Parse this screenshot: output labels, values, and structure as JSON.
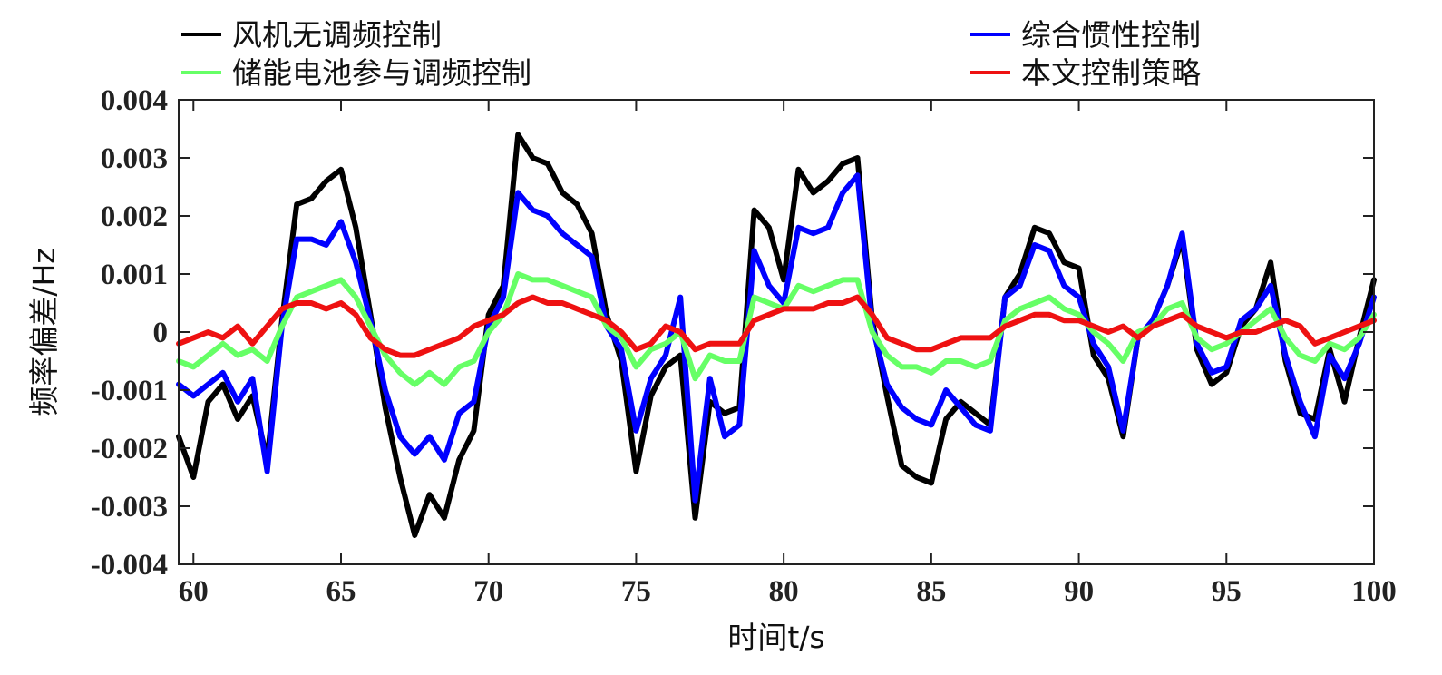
{
  "chart_data": {
    "type": "line",
    "title": "",
    "xlabel": "时间t/s",
    "ylabel": "频率偏差/Hz",
    "xlim": [
      59.5,
      100
    ],
    "ylim": [
      -0.004,
      0.004
    ],
    "xticks": [
      60,
      65,
      70,
      75,
      80,
      85,
      90,
      95,
      100
    ],
    "xtick_labels": [
      "60",
      "65",
      "70",
      "75",
      "80",
      "85",
      "90",
      "95",
      "100"
    ],
    "yticks": [
      0.004,
      0.003,
      0.002,
      0.001,
      0,
      -0.001,
      -0.002,
      -0.003,
      -0.004
    ],
    "ytick_labels": [
      "0.004",
      "0.003",
      "0.002",
      "0.001",
      "0",
      "-0.001",
      "-0.002",
      "-0.003",
      "-0.004"
    ],
    "grid": false,
    "legend_position": "top",
    "series": [
      {
        "name": "风机无调频控制",
        "color": "#000000",
        "x": [
          59.5,
          60,
          60.5,
          61,
          61.5,
          62,
          62.5,
          63,
          63.5,
          64,
          64.5,
          65,
          65.5,
          66,
          66.5,
          67,
          67.5,
          68,
          68.5,
          69,
          69.5,
          70,
          70.5,
          71,
          71.5,
          72,
          72.5,
          73,
          73.5,
          74,
          74.5,
          75,
          75.5,
          76,
          76.5,
          77,
          77.5,
          78,
          78.5,
          79,
          79.5,
          80,
          80.5,
          81,
          81.5,
          82,
          82.5,
          83,
          83.5,
          84,
          84.5,
          85,
          85.5,
          86,
          86.5,
          87,
          87.5,
          88,
          88.5,
          89,
          89.5,
          90,
          90.5,
          91,
          91.5,
          92,
          92.5,
          93,
          93.5,
          94,
          94.5,
          95,
          95.5,
          96,
          96.5,
          97,
          97.5,
          98,
          98.5,
          99,
          99.5,
          100
        ],
        "y": [
          -0.0018,
          -0.0025,
          -0.0012,
          -0.0009,
          -0.0015,
          -0.0011,
          -0.0022,
          0.0002,
          0.0022,
          0.0023,
          0.0026,
          0.0028,
          0.0018,
          0.0003,
          -0.0013,
          -0.0025,
          -0.0035,
          -0.0028,
          -0.0032,
          -0.0022,
          -0.0017,
          0.0003,
          0.0008,
          0.0034,
          0.003,
          0.0029,
          0.0024,
          0.0022,
          0.0017,
          0.0003,
          -0.0005,
          -0.0024,
          -0.0011,
          -0.0006,
          -0.0004,
          -0.0032,
          -0.0012,
          -0.0014,
          -0.0013,
          0.0021,
          0.0018,
          0.0009,
          0.0028,
          0.0024,
          0.0026,
          0.0029,
          0.003,
          0.0002,
          -0.0011,
          -0.0023,
          -0.0025,
          -0.0026,
          -0.0015,
          -0.0012,
          -0.0014,
          -0.0016,
          0.0006,
          0.001,
          0.0018,
          0.0017,
          0.0012,
          0.0011,
          -0.0004,
          -0.0008,
          -0.0018,
          -0.0001,
          0.0002,
          0.0008,
          0.0016,
          -0.0003,
          -0.0009,
          -0.0007,
          0.0001,
          0.0004,
          0.0012,
          -0.0005,
          -0.0014,
          -0.0015,
          -0.0003,
          -0.0012,
          -0.0001,
          0.0009
        ]
      },
      {
        "name": "综合惯性控制",
        "color": "#0000ff",
        "x": [
          59.5,
          60,
          60.5,
          61,
          61.5,
          62,
          62.5,
          63,
          63.5,
          64,
          64.5,
          65,
          65.5,
          66,
          66.5,
          67,
          67.5,
          68,
          68.5,
          69,
          69.5,
          70,
          70.5,
          71,
          71.5,
          72,
          72.5,
          73,
          73.5,
          74,
          74.5,
          75,
          75.5,
          76,
          76.5,
          77,
          77.5,
          78,
          78.5,
          79,
          79.5,
          80,
          80.5,
          81,
          81.5,
          82,
          82.5,
          83,
          83.5,
          84,
          84.5,
          85,
          85.5,
          86,
          86.5,
          87,
          87.5,
          88,
          88.5,
          89,
          89.5,
          90,
          90.5,
          91,
          91.5,
          92,
          92.5,
          93,
          93.5,
          94,
          94.5,
          95,
          95.5,
          96,
          96.5,
          97,
          97.5,
          98,
          98.5,
          99,
          99.5,
          100
        ],
        "y": [
          -0.0009,
          -0.0011,
          -0.0009,
          -0.0007,
          -0.0012,
          -0.0008,
          -0.0024,
          0.0001,
          0.0016,
          0.0016,
          0.0015,
          0.0019,
          0.0012,
          0.0002,
          -0.001,
          -0.0018,
          -0.0021,
          -0.0018,
          -0.0022,
          -0.0014,
          -0.0012,
          0.0001,
          0.0006,
          0.0024,
          0.0021,
          0.002,
          0.0017,
          0.0015,
          0.0013,
          0.0001,
          -0.0003,
          -0.0017,
          -0.0008,
          -0.0004,
          0.0006,
          -0.0029,
          -0.0008,
          -0.0018,
          -0.0016,
          0.0014,
          0.0008,
          0.0005,
          0.0018,
          0.0017,
          0.0018,
          0.0024,
          0.0027,
          0.0001,
          -0.0009,
          -0.0013,
          -0.0015,
          -0.0016,
          -0.001,
          -0.0013,
          -0.0016,
          -0.0017,
          0.0006,
          0.0008,
          0.0015,
          0.0014,
          0.0008,
          0.0006,
          -0.0002,
          -0.0006,
          -0.0017,
          -0.0001,
          0.0002,
          0.0008,
          0.0017,
          -0.0002,
          -0.0007,
          -0.0006,
          0.0002,
          0.0004,
          0.0008,
          -0.0004,
          -0.0012,
          -0.0018,
          -0.0004,
          -0.0008,
          -0.0002,
          0.0006
        ]
      },
      {
        "name": "储能电池参与调频控制",
        "color": "#66ff66",
        "x": [
          59.5,
          60,
          60.5,
          61,
          61.5,
          62,
          62.5,
          63,
          63.5,
          64,
          64.5,
          65,
          65.5,
          66,
          66.5,
          67,
          67.5,
          68,
          68.5,
          69,
          69.5,
          70,
          70.5,
          71,
          71.5,
          72,
          72.5,
          73,
          73.5,
          74,
          74.5,
          75,
          75.5,
          76,
          76.5,
          77,
          77.5,
          78,
          78.5,
          79,
          79.5,
          80,
          80.5,
          81,
          81.5,
          82,
          82.5,
          83,
          83.5,
          84,
          84.5,
          85,
          85.5,
          86,
          86.5,
          87,
          87.5,
          88,
          88.5,
          89,
          89.5,
          90,
          90.5,
          91,
          91.5,
          92,
          92.5,
          93,
          93.5,
          94,
          94.5,
          95,
          95.5,
          96,
          96.5,
          97,
          97.5,
          98,
          98.5,
          99,
          99.5,
          100
        ],
        "y": [
          -0.0005,
          -0.0006,
          -0.0004,
          -0.0002,
          -0.0004,
          -0.0003,
          -0.0005,
          0.0001,
          0.0006,
          0.0007,
          0.0008,
          0.0009,
          0.0006,
          0.0001,
          -0.0004,
          -0.0007,
          -0.0009,
          -0.0007,
          -0.0009,
          -0.0006,
          -0.0005,
          0,
          0.0003,
          0.001,
          0.0009,
          0.0009,
          0.0008,
          0.0007,
          0.0006,
          0.0001,
          -0.0001,
          -0.0006,
          -0.0003,
          -0.0002,
          0,
          -0.0008,
          -0.0004,
          -0.0005,
          -0.0005,
          0.0006,
          0.0005,
          0.0004,
          0.0008,
          0.0007,
          0.0008,
          0.0009,
          0.0009,
          0,
          -0.0004,
          -0.0006,
          -0.0006,
          -0.0007,
          -0.0005,
          -0.0005,
          -0.0006,
          -0.0005,
          0.0002,
          0.0004,
          0.0005,
          0.0006,
          0.0004,
          0.0003,
          0,
          -0.0002,
          -0.0005,
          0,
          0.0001,
          0.0004,
          0.0005,
          -0.0001,
          -0.0003,
          -0.0002,
          0,
          0.0002,
          0.0004,
          -0.0001,
          -0.0004,
          -0.0005,
          -0.0002,
          -0.0003,
          -0.0001,
          0.0003
        ]
      },
      {
        "name": "本文控制策略",
        "color": "#ee1111",
        "x": [
          59.5,
          60,
          60.5,
          61,
          61.5,
          62,
          62.5,
          63,
          63.5,
          64,
          64.5,
          65,
          65.5,
          66,
          66.5,
          67,
          67.5,
          68,
          68.5,
          69,
          69.5,
          70,
          70.5,
          71,
          71.5,
          72,
          72.5,
          73,
          73.5,
          74,
          74.5,
          75,
          75.5,
          76,
          76.5,
          77,
          77.5,
          78,
          78.5,
          79,
          79.5,
          80,
          80.5,
          81,
          81.5,
          82,
          82.5,
          83,
          83.5,
          84,
          84.5,
          85,
          85.5,
          86,
          86.5,
          87,
          87.5,
          88,
          88.5,
          89,
          89.5,
          90,
          90.5,
          91,
          91.5,
          92,
          92.5,
          93,
          93.5,
          94,
          94.5,
          95,
          95.5,
          96,
          96.5,
          97,
          97.5,
          98,
          98.5,
          99,
          99.5,
          100
        ],
        "y": [
          -0.0002,
          -0.0001,
          0,
          -0.0001,
          0.0001,
          -0.0002,
          0.0001,
          0.0004,
          0.0005,
          0.0005,
          0.0004,
          0.0005,
          0.0003,
          -0.0001,
          -0.0003,
          -0.0004,
          -0.0004,
          -0.0003,
          -0.0002,
          -0.0001,
          0.0001,
          0.0002,
          0.0003,
          0.0005,
          0.0006,
          0.0005,
          0.0005,
          0.0004,
          0.0003,
          0.0002,
          0,
          -0.0003,
          -0.0002,
          0.0001,
          0,
          -0.0003,
          -0.0002,
          -0.0002,
          -0.0002,
          0.0002,
          0.0003,
          0.0004,
          0.0004,
          0.0004,
          0.0005,
          0.0005,
          0.0006,
          0.0003,
          -0.0001,
          -0.0002,
          -0.0003,
          -0.0003,
          -0.0002,
          -0.0001,
          -0.0001,
          -0.0001,
          0.0001,
          0.0002,
          0.0003,
          0.0003,
          0.0002,
          0.0002,
          0.0001,
          0,
          0.0001,
          -0.0001,
          0.0001,
          0.0002,
          0.0003,
          0.0001,
          0,
          -0.0001,
          0,
          0,
          0.0001,
          0.0002,
          0.0001,
          -0.0002,
          -0.0001,
          0,
          0.0001,
          0.0002
        ]
      }
    ]
  }
}
